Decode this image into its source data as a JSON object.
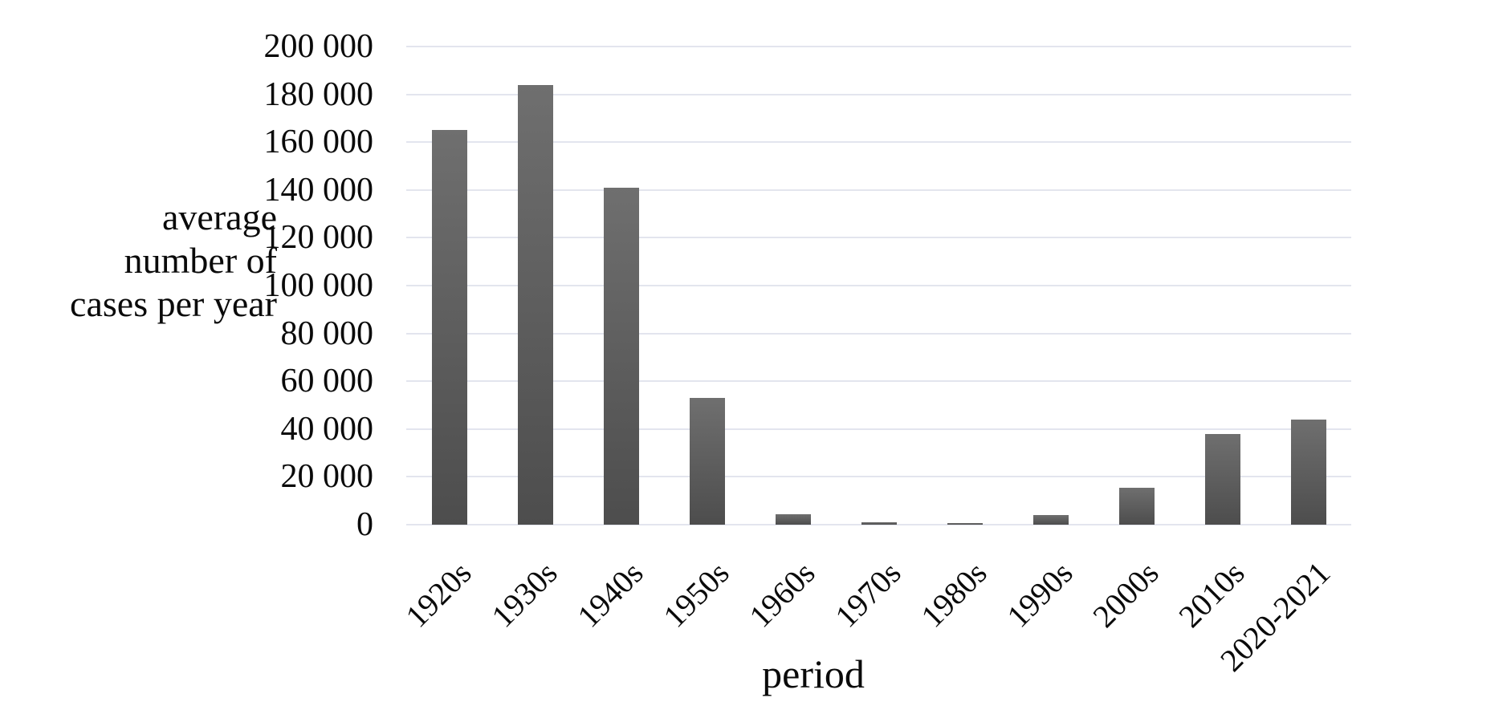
{
  "chart_data": {
    "type": "bar",
    "title": "",
    "categories": [
      "1920s",
      "1930s",
      "1940s",
      "1950s",
      "1960s",
      "1970s",
      "1980s",
      "1990s",
      "2000s",
      "2010s",
      "2020-2021"
    ],
    "values": [
      165000,
      184000,
      141000,
      53000,
      4500,
      1100,
      700,
      3900,
      15500,
      38000,
      44000
    ],
    "xlabel": "period",
    "ylabel": "average number of cases per year",
    "ylabel_lines": [
      "average",
      "number of",
      "cases per year"
    ],
    "ylim": [
      0,
      200000
    ],
    "ytick_step": 20000,
    "ytick_labels": [
      "0",
      "20 000",
      "40 000",
      "60 000",
      "80 000",
      "100 000",
      "120 000",
      "140 000",
      "160 000",
      "180 000",
      "200 000"
    ],
    "grid": true,
    "legend": false,
    "x_label_rotation_deg": -45,
    "colors": {
      "bar_top": "#6f6f6f",
      "bar_bottom": "#4d4d4d",
      "gridline": "#e3e5ee",
      "text": "#0a0a0a",
      "background": "#ffffff"
    }
  }
}
